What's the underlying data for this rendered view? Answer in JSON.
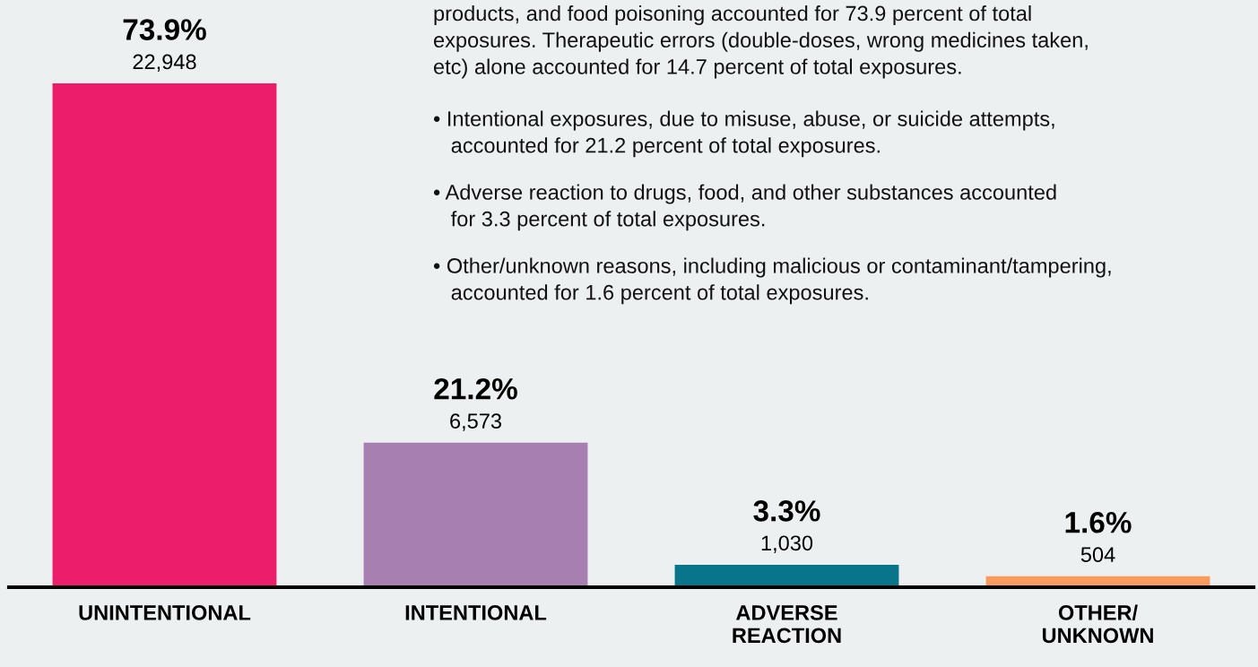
{
  "chart_data": {
    "type": "bar",
    "categories": [
      "UNINTENTIONAL",
      "INTENTIONAL",
      "ADVERSE\nREACTION",
      "OTHER/\nUNKNOWN"
    ],
    "values": [
      73.9,
      21.2,
      3.3,
      1.6
    ],
    "colors": [
      "#ec1e6b",
      "#a87fb1",
      "#09758a",
      "#f99a5f"
    ],
    "value_labels": [
      "73.9%",
      "21.2%",
      "3.3%",
      "1.6%"
    ],
    "tick_labels": "x",
    "grid": false,
    "legend": false,
    "annotations": [
      "products, and food poisoning accounted for 73.9 percent of total\nexposures. Therapeutic errors (double-doses, wrong medicines taken,\netc) alone accounted for 14.7 percent of total exposures.",
      "• Intentional exposures, due to misuse, abuse, or suicide attempts,\n   accounted for 21.2 percent of total exposures.",
      "• Adverse reaction to drugs, food, and other substances accounted\n   for 3.3 percent of total exposures.",
      "• Other/unknown reasons, including malicious or contaminant/tampering,\n   accounted for 1.6 percent of total exposures.",
      {
        "text": "22,948",
        "x": "UNINTENTIONAL",
        "y": 73.9
      },
      {
        "text": "6,573",
        "x": "INTENTIONAL",
        "y": 21.2
      },
      {
        "text": "1,030",
        "x": "ADVERSE\nREACTION",
        "y": 3.3
      },
      {
        "text": "504",
        "x": "OTHER/\nUNKNOWN",
        "y": 1.6
      }
    ]
  }
}
